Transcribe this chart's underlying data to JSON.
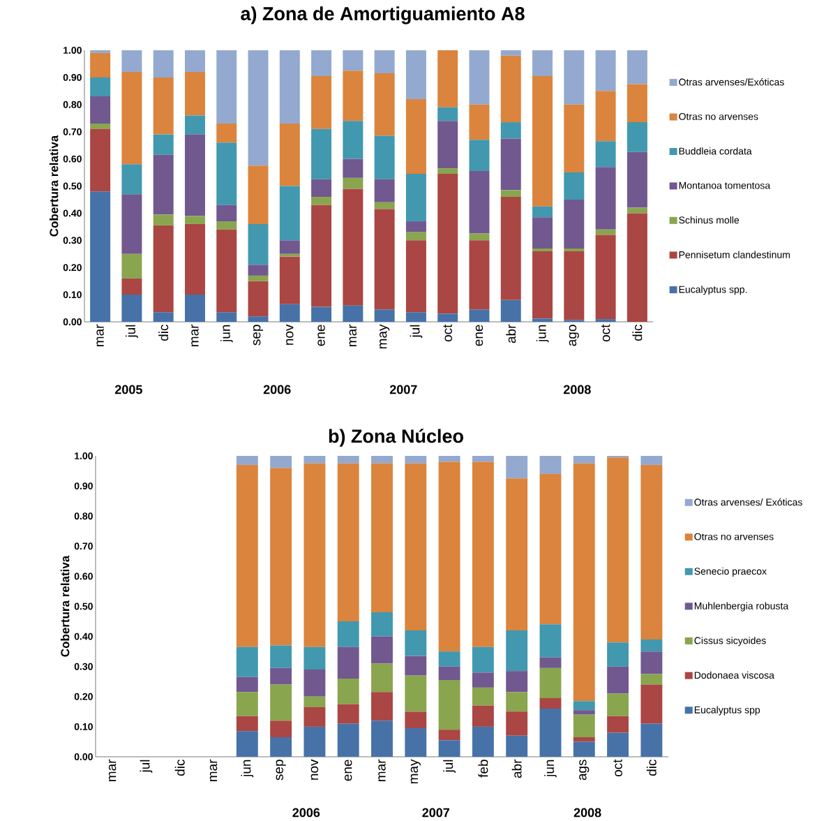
{
  "chart_data": [
    {
      "type": "bar",
      "stacked": true,
      "title": "a) Zona de Amortiguamiento  A8",
      "ylabel": "Cobertura relativa",
      "categories": [
        "mar",
        "jul",
        "dic",
        "mar",
        "jun",
        "sep",
        "nov",
        "ene",
        "mar",
        "may",
        "jul",
        "oct",
        "ene",
        "abr",
        "jun",
        "ago",
        "oct",
        "dic"
      ],
      "ylim": [
        0,
        1
      ],
      "yticks": [
        {
          "value": 0,
          "label": "0.00"
        },
        {
          "value": 0.1,
          "label": "0.10"
        },
        {
          "value": 0.2,
          "label": "0.20"
        },
        {
          "value": 0.3,
          "label": "0.30"
        },
        {
          "value": 0.4,
          "label": "0.40"
        },
        {
          "value": 0.5,
          "label": "0.50"
        },
        {
          "value": 0.6,
          "label": "0.60"
        },
        {
          "value": 0.7,
          "label": "0.70"
        },
        {
          "value": 0.8,
          "label": "0.80"
        },
        {
          "value": 0.9,
          "label": "0.90"
        },
        {
          "value": 1,
          "label": "1.00"
        }
      ],
      "legend": "right",
      "annotations": [
        "2005",
        "2006",
        "2007",
        "2008"
      ],
      "series": [
        {
          "name": "Eucalyptus spp.",
          "color": "#4672a8",
          "values": [
            0.48,
            0.1,
            0.035,
            0.1,
            0.035,
            0.02,
            0.065,
            0.055,
            0.06,
            0.045,
            0.035,
            0.03,
            0.045,
            0.08,
            0.012,
            0.007,
            0.01,
            0
          ]
        },
        {
          "name": "Pennisetum clandestinum",
          "color": "#aa4643",
          "values": [
            0.23,
            0.06,
            0.32,
            0.26,
            0.305,
            0.13,
            0.175,
            0.375,
            0.43,
            0.37,
            0.265,
            0.515,
            0.255,
            0.38,
            0.248,
            0.253,
            0.31,
            0.4
          ]
        },
        {
          "name": "Schinus molle",
          "color": "#89a54e",
          "values": [
            0.02,
            0.09,
            0.04,
            0.03,
            0.03,
            0.02,
            0.01,
            0.03,
            0.04,
            0.025,
            0.03,
            0.02,
            0.025,
            0.025,
            0.01,
            0.01,
            0.02,
            0.02
          ]
        },
        {
          "name": "Montanoa tomentosa",
          "color": "#71588f",
          "values": [
            0.1,
            0.22,
            0.22,
            0.3,
            0.06,
            0.04,
            0.05,
            0.065,
            0.07,
            0.085,
            0.04,
            0.175,
            0.23,
            0.19,
            0.115,
            0.18,
            0.23,
            0.205
          ]
        },
        {
          "name": "Buddleia cordata",
          "color": "#4198af",
          "values": [
            0.07,
            0.11,
            0.075,
            0.07,
            0.23,
            0.15,
            0.2,
            0.185,
            0.14,
            0.16,
            0.175,
            0.05,
            0.115,
            0.06,
            0.04,
            0.1,
            0.095,
            0.11
          ]
        },
        {
          "name": "Otras no arvenses",
          "color": "#db843d",
          "values": [
            0.09,
            0.34,
            0.21,
            0.16,
            0.07,
            0.215,
            0.23,
            0.195,
            0.185,
            0.23,
            0.275,
            0.21,
            0.13,
            0.245,
            0.48,
            0.25,
            0.185,
            0.14
          ]
        },
        {
          "name": "Otras arvenses/Exóticas",
          "color": "#93a9cf",
          "values": [
            0.01,
            0.08,
            0.1,
            0.08,
            0.27,
            0.425,
            0.27,
            0.095,
            0.075,
            0.085,
            0.18,
            0,
            0.2,
            0.02,
            0.095,
            0.2,
            0.15,
            0.125
          ]
        }
      ]
    },
    {
      "type": "bar",
      "stacked": true,
      "title": "b)  Zona Núcleo",
      "ylabel": "Cobertura relativa",
      "categories": [
        "mar",
        "jul",
        "dic",
        "mar",
        "jun",
        "sep",
        "nov",
        "ene",
        "mar",
        "may",
        "jul",
        "feb",
        "abr",
        "jun",
        "ags",
        "oct",
        "dic"
      ],
      "ylim": [
        0,
        1
      ],
      "yticks": [
        {
          "value": 0,
          "label": "0.00"
        },
        {
          "value": 0.1,
          "label": "0.10"
        },
        {
          "value": 0.2,
          "label": "0.20"
        },
        {
          "value": 0.3,
          "label": "0.30"
        },
        {
          "value": 0.4,
          "label": "0.40"
        },
        {
          "value": 0.5,
          "label": "0.50"
        },
        {
          "value": 0.6,
          "label": "0.60"
        },
        {
          "value": 0.7,
          "label": "0.70"
        },
        {
          "value": 0.8,
          "label": "0.80"
        },
        {
          "value": 0.9,
          "label": "0.90"
        },
        {
          "value": 1,
          "label": "1.00"
        }
      ],
      "legend": "right",
      "annotations": [
        "2006",
        "2007",
        "2008"
      ],
      "series": [
        {
          "name": "Eucalyptus spp",
          "color": "#4672a8",
          "values": [
            null,
            null,
            null,
            null,
            0.085,
            0.065,
            0.1,
            0.11,
            0.12,
            0.095,
            0.055,
            0.1,
            0.07,
            0.16,
            0.05,
            0.08,
            0.11
          ]
        },
        {
          "name": "Dodonaea viscosa",
          "color": "#aa4643",
          "values": [
            null,
            null,
            null,
            null,
            0.05,
            0.055,
            0.065,
            0.065,
            0.095,
            0.055,
            0.035,
            0.07,
            0.08,
            0.035,
            0.015,
            0.055,
            0.13
          ]
        },
        {
          "name": "Cissus sicyoides",
          "color": "#89a54e",
          "values": [
            null,
            null,
            null,
            null,
            0.08,
            0.12,
            0.035,
            0.085,
            0.095,
            0.12,
            0.165,
            0.06,
            0.065,
            0.1,
            0.075,
            0.075,
            0.035
          ]
        },
        {
          "name": "Muhlenbergia robusta",
          "color": "#71588f",
          "values": [
            null,
            null,
            null,
            null,
            0.05,
            0.055,
            0.09,
            0.105,
            0.09,
            0.065,
            0.045,
            0.05,
            0.07,
            0.035,
            0.015,
            0.09,
            0.075
          ]
        },
        {
          "name": "Senecio praecox",
          "color": "#4198af",
          "values": [
            null,
            null,
            null,
            null,
            0.1,
            0.075,
            0.075,
            0.085,
            0.08,
            0.085,
            0.05,
            0.085,
            0.135,
            0.11,
            0.03,
            0.08,
            0.04
          ]
        },
        {
          "name": "Otras no arvenses",
          "color": "#db843d",
          "values": [
            null,
            null,
            null,
            null,
            0.605,
            0.59,
            0.61,
            0.525,
            0.495,
            0.555,
            0.63,
            0.615,
            0.505,
            0.5,
            0.79,
            0.615,
            0.58
          ]
        },
        {
          "name": "Otras arvenses/ Exóticas",
          "color": "#93a9cf",
          "values": [
            null,
            null,
            null,
            null,
            0.03,
            0.04,
            0.025,
            0.025,
            0.025,
            0.025,
            0.02,
            0.02,
            0.075,
            0.06,
            0.025,
            0.005,
            0.03
          ]
        }
      ]
    }
  ]
}
